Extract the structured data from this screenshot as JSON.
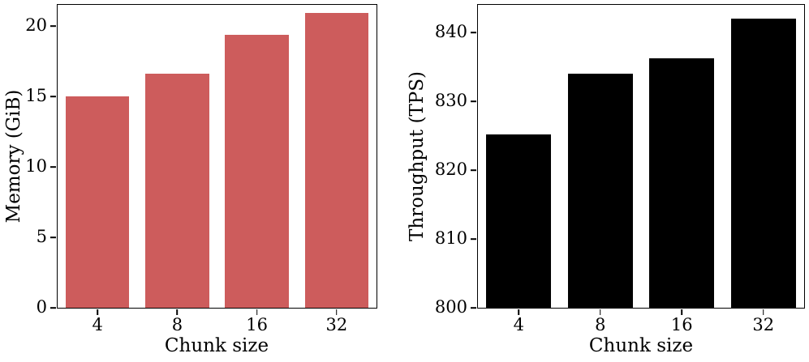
{
  "chart_data": [
    {
      "type": "bar",
      "title": "",
      "categories": [
        "4",
        "8",
        "16",
        "32"
      ],
      "values": [
        15.0,
        16.6,
        19.4,
        20.9
      ],
      "xlabel": "Chunk size",
      "ylabel": "Memory (GiB)",
      "ylim": [
        0,
        21.5
      ],
      "yticks": [
        0,
        5,
        10,
        15,
        20
      ],
      "bar_color": "#cd5c5c",
      "grid": false,
      "legend": "none"
    },
    {
      "type": "bar",
      "title": "",
      "categories": [
        "4",
        "8",
        "16",
        "32"
      ],
      "values": [
        825.2,
        834.0,
        836.2,
        842.0
      ],
      "xlabel": "Chunk size",
      "ylabel": "Throughput (TPS)",
      "ylim": [
        800,
        844
      ],
      "yticks": [
        800,
        810,
        820,
        830,
        840
      ],
      "bar_color": "#000000",
      "grid": false,
      "legend": "none"
    }
  ],
  "colors": {
    "background": "#ffffff",
    "axis": "#000000",
    "memory_bars": "#cd5c5c",
    "throughput_bars": "#000000"
  }
}
